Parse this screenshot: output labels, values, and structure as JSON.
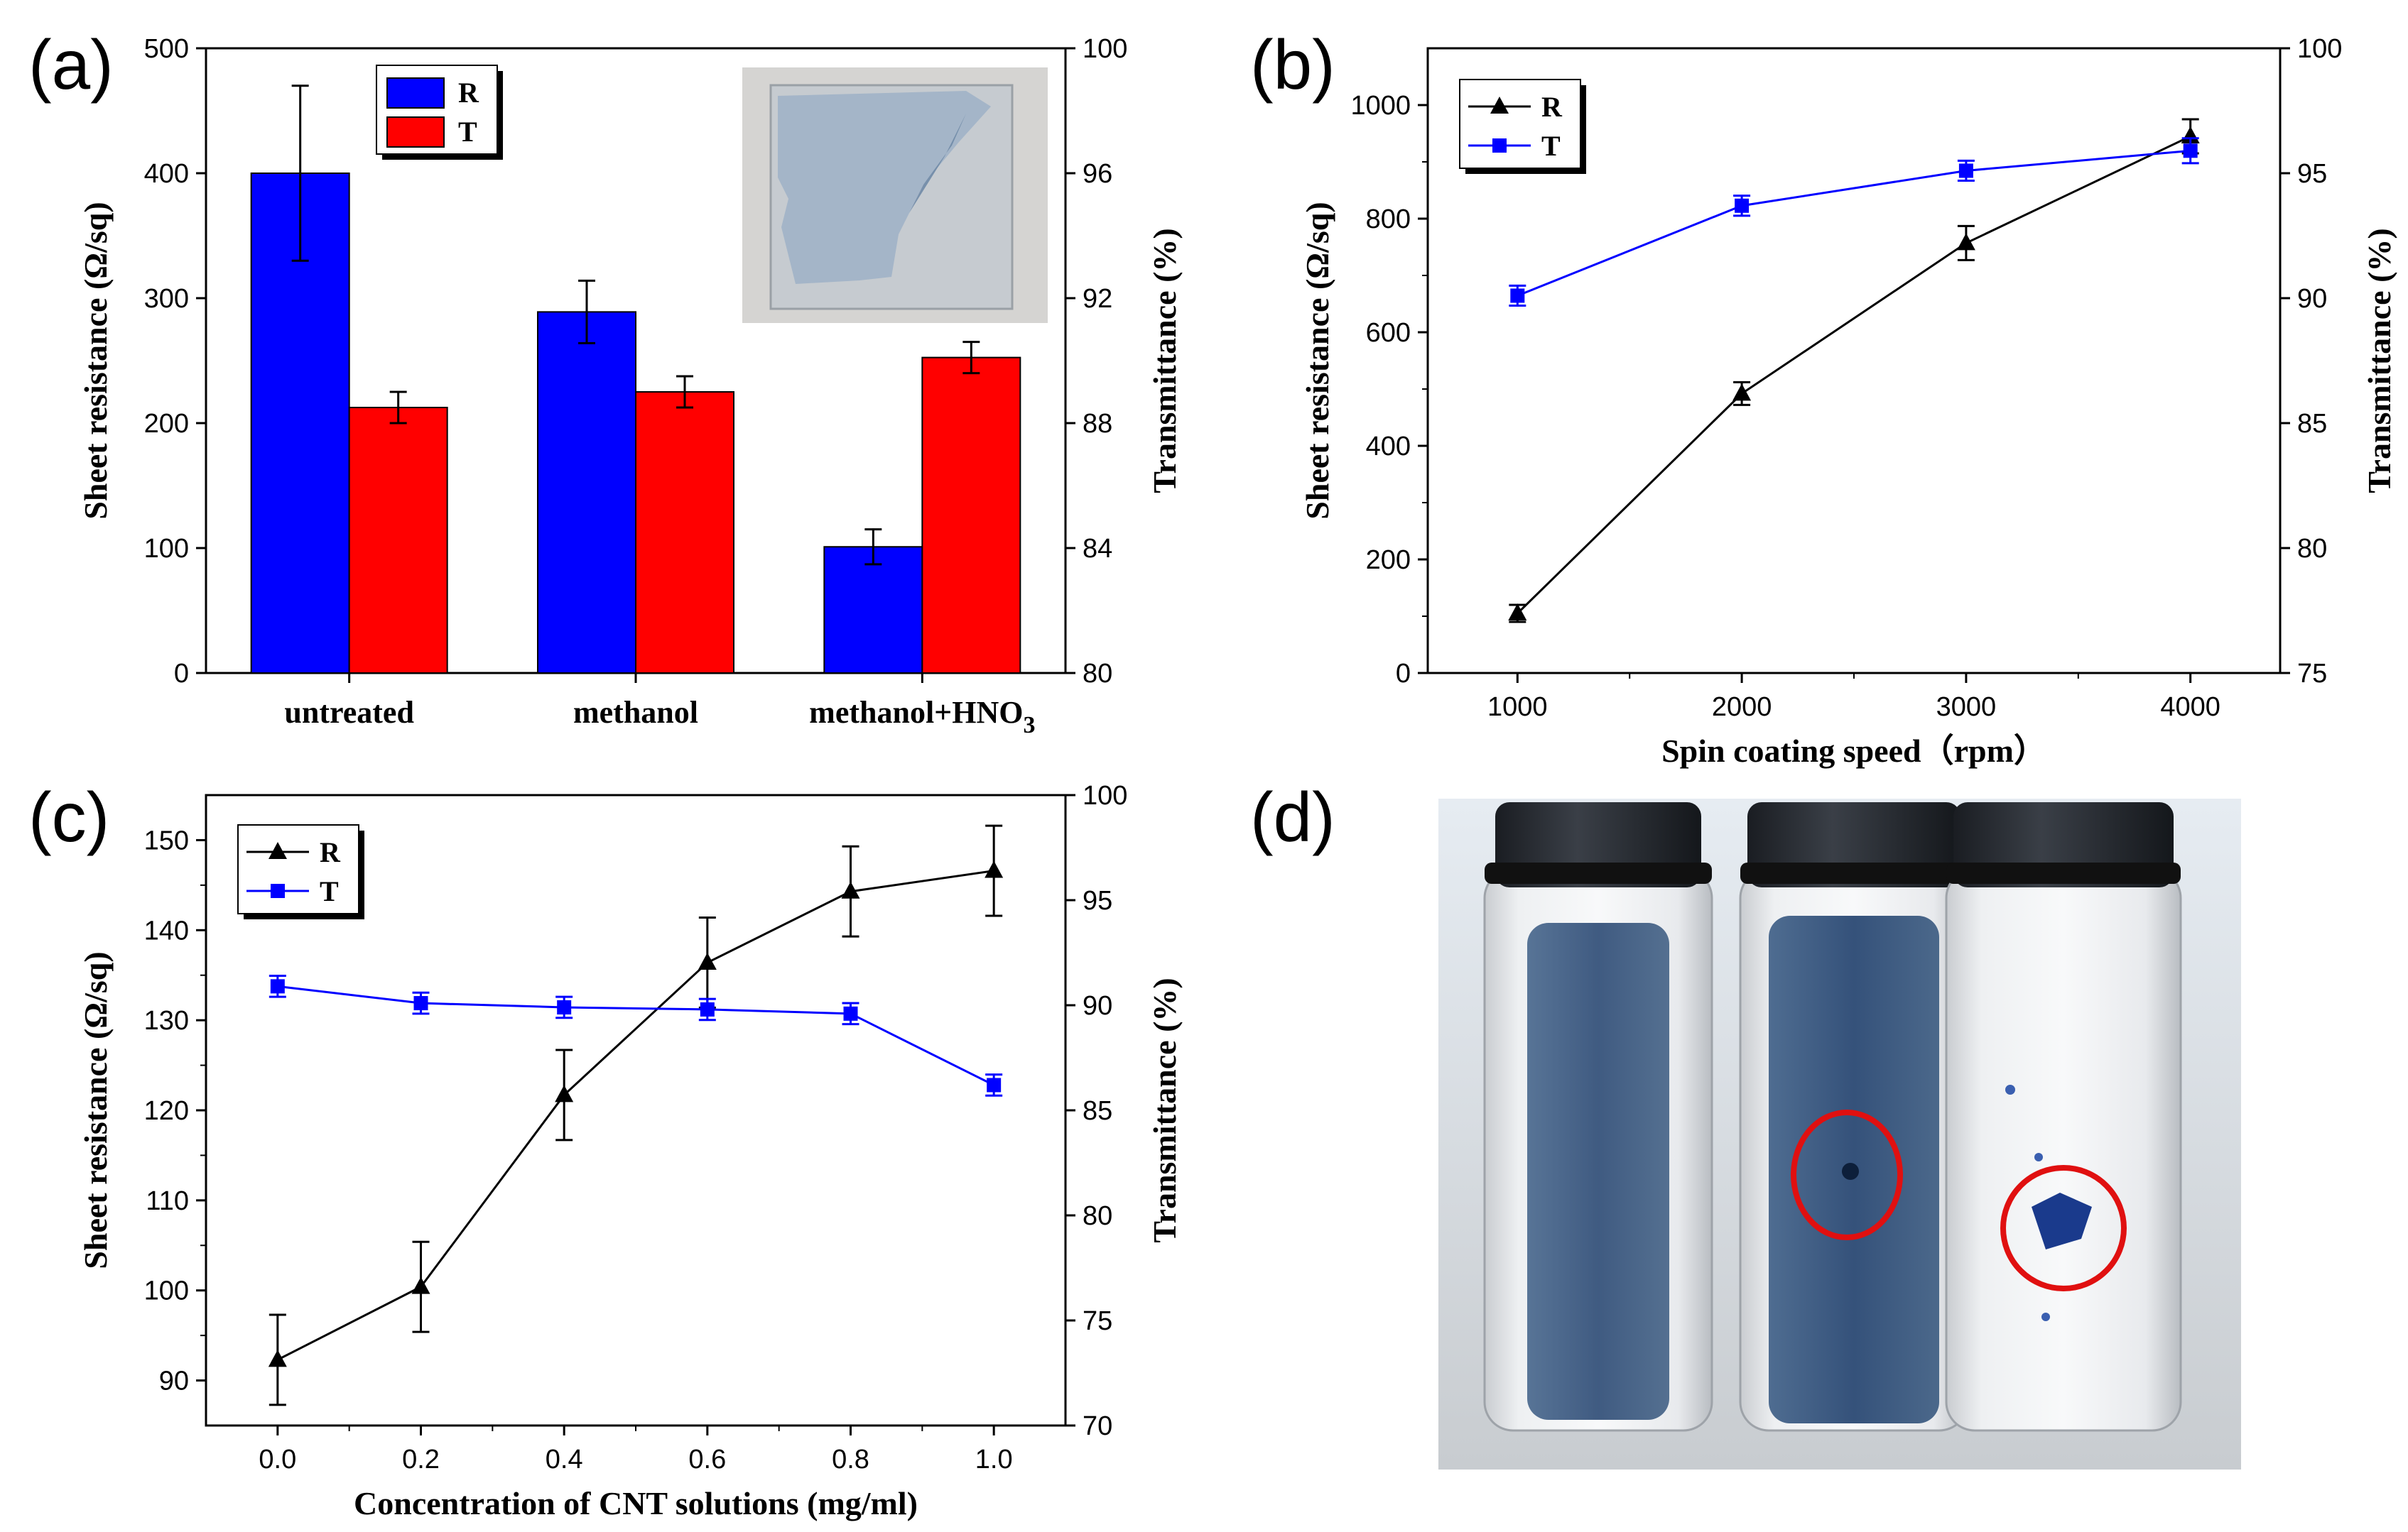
{
  "panels": {
    "a": {
      "label": "(a)"
    },
    "b": {
      "label": "(b)"
    },
    "c": {
      "label": "(c)"
    },
    "d": {
      "label": "(d)"
    }
  },
  "chart_data": [
    {
      "id": "a",
      "type": "bar",
      "title": "",
      "categories": [
        "untreated",
        "methanol",
        "methanol+HNO3"
      ],
      "category_display": [
        {
          "main": "untreated",
          "sub": ""
        },
        {
          "main": "methanol",
          "sub": ""
        },
        {
          "main": "methanol+HNO",
          "sub": "3"
        }
      ],
      "xlabel": "",
      "ylabel": "Sheet resistance (Ω/sq)",
      "y2label": "Transmittance (%)",
      "ylim": [
        0,
        500
      ],
      "y2lim": [
        80,
        100
      ],
      "yticks": [
        0,
        100,
        200,
        300,
        400,
        500
      ],
      "y2ticks": [
        80,
        84,
        88,
        92,
        96,
        100
      ],
      "series": [
        {
          "name": "R",
          "axis": "left",
          "color": "#0000ff",
          "values": [
            400,
            289,
            101
          ],
          "errors": [
            70,
            25,
            14
          ]
        },
        {
          "name": "T",
          "axis": "right",
          "color": "#ff0000",
          "values": [
            88.5,
            89.0,
            90.1
          ],
          "errors": [
            0.5,
            0.5,
            0.5
          ]
        }
      ],
      "legend": "top-center",
      "inset": "photo of transparent CNT film"
    },
    {
      "id": "b",
      "type": "line",
      "title": "",
      "x": [
        1000,
        2000,
        3000,
        4000
      ],
      "xlabel": "Spin coating speed（rpm）",
      "ylabel": "Sheet resistance (Ω/sq)",
      "y2label": "Transmittance (%)",
      "xlim": [
        600,
        4400
      ],
      "ylim": [
        0,
        1100
      ],
      "y2lim": [
        75,
        100
      ],
      "xticks": [
        1000,
        2000,
        3000,
        4000
      ],
      "yticks": [
        0,
        200,
        400,
        600,
        800,
        1000
      ],
      "y2ticks": [
        75,
        80,
        85,
        90,
        95,
        100
      ],
      "series": [
        {
          "name": "R",
          "axis": "left",
          "color": "#000000",
          "marker": "triangle",
          "values": [
            105,
            492,
            757,
            945
          ],
          "errors": [
            15,
            20,
            30,
            30
          ]
        },
        {
          "name": "T",
          "axis": "right",
          "color": "#0000ff",
          "marker": "square",
          "values": [
            90.1,
            93.7,
            95.1,
            95.9
          ],
          "errors": [
            0.4,
            0.4,
            0.4,
            0.5
          ]
        }
      ],
      "legend": "top-left"
    },
    {
      "id": "c",
      "type": "line",
      "title": "",
      "x": [
        0.0,
        0.2,
        0.4,
        0.6,
        0.8,
        1.0
      ],
      "xlabel": "Concentration of CNT solutions (mg/ml)",
      "ylabel": "Sheet resistance (Ω/sq)",
      "y2label": "Transmittance (%)",
      "xlim": [
        -0.1,
        1.1
      ],
      "ylim": [
        85,
        155
      ],
      "y2lim": [
        70,
        100
      ],
      "xticks": [
        0.0,
        0.2,
        0.4,
        0.6,
        0.8,
        1.0
      ],
      "xtick_labels": [
        "0.0",
        "0.2",
        "0.4",
        "0.6",
        "0.8",
        "1.0"
      ],
      "yticks": [
        90,
        100,
        110,
        120,
        130,
        140,
        150
      ],
      "y2ticks": [
        70,
        75,
        80,
        85,
        90,
        95,
        100
      ],
      "series": [
        {
          "name": "R",
          "axis": "left",
          "color": "#000000",
          "marker": "triangle",
          "values": [
            92.3,
            100.4,
            121.7,
            136.4,
            144.3,
            146.6
          ],
          "errors": [
            5,
            5,
            5,
            5,
            5,
            5
          ]
        },
        {
          "name": "T",
          "axis": "right",
          "color": "#0000ff",
          "marker": "square",
          "values": [
            90.9,
            90.1,
            89.9,
            89.8,
            89.6,
            86.2
          ],
          "errors": [
            0.5,
            0.5,
            0.5,
            0.5,
            0.5,
            0.5
          ]
        }
      ],
      "legend": "top-left"
    }
  ],
  "photo_d": {
    "description_free": true
  }
}
